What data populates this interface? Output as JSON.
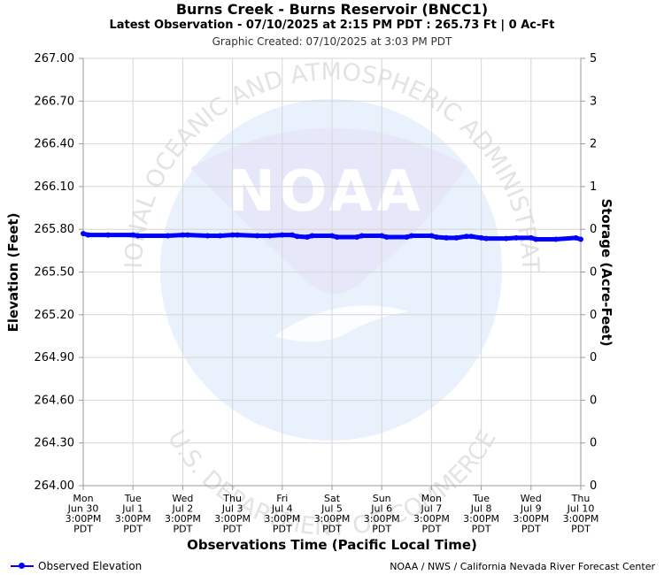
{
  "chart_data": {
    "type": "line",
    "title": "Burns Creek - Burns Reservoir (BNCC1)",
    "subtitle": "Latest Observation - 07/10/2025 at 2:15 PM PDT : 265.73 Ft | 0 Ac-Ft",
    "created": "Graphic Created: 07/10/2025 at 3:03 PM PDT",
    "xlabel": "Observations Time (Pacific Local Time)",
    "ylabel": "Elevation (Feet)",
    "y2label": "Storage (Acre-Feet)",
    "ylim": [
      264.0,
      267.0
    ],
    "y_ticks": [
      "264.00",
      "264.30",
      "264.60",
      "264.90",
      "265.20",
      "265.50",
      "265.80",
      "266.10",
      "266.40",
      "266.70",
      "267.00"
    ],
    "y2_ticks": [
      "0",
      "0",
      "0",
      "0",
      "0",
      "0",
      "0",
      "1",
      "2",
      "3",
      "5"
    ],
    "x_ticks": [
      [
        "Mon",
        "Jun 30",
        "3:00PM",
        "PDT"
      ],
      [
        "Tue",
        "Jul 1",
        "3:00PM",
        "PDT"
      ],
      [
        "Wed",
        "Jul 2",
        "3:00PM",
        "PDT"
      ],
      [
        "Thu",
        "Jul 3",
        "3:00PM",
        "PDT"
      ],
      [
        "Fri",
        "Jul 4",
        "3:00PM",
        "PDT"
      ],
      [
        "Sat",
        "Jul 5",
        "3:00PM",
        "PDT"
      ],
      [
        "Sun",
        "Jul 6",
        "3:00PM",
        "PDT"
      ],
      [
        "Mon",
        "Jul 7",
        "3:00PM",
        "PDT"
      ],
      [
        "Tue",
        "Jul 8",
        "3:00PM",
        "PDT"
      ],
      [
        "Wed",
        "Jul 9",
        "3:00PM",
        "PDT"
      ],
      [
        "Thu",
        "Jul 10",
        "3:00PM",
        "PDT"
      ]
    ],
    "x_range_days": [
      0,
      10
    ],
    "series": [
      {
        "name": "Observed Elevation",
        "color": "#0000ff",
        "x": [
          0.0,
          0.1,
          0.5,
          1.0,
          1.1,
          1.7,
          2.0,
          2.1,
          2.5,
          2.75,
          3.0,
          3.1,
          3.5,
          3.75,
          4.0,
          4.2,
          4.3,
          4.5,
          4.6,
          5.0,
          5.1,
          5.5,
          5.6,
          6.0,
          6.1,
          6.5,
          6.6,
          7.0,
          7.1,
          7.3,
          7.5,
          7.7,
          7.8,
          8.0,
          8.1,
          8.5,
          8.7,
          9.0,
          9.1,
          9.5,
          9.9,
          10.0
        ],
        "values": [
          265.77,
          265.76,
          265.76,
          265.76,
          265.755,
          265.755,
          265.76,
          265.76,
          265.755,
          265.755,
          265.76,
          265.76,
          265.755,
          265.755,
          265.76,
          265.76,
          265.75,
          265.745,
          265.755,
          265.755,
          265.745,
          265.745,
          265.755,
          265.755,
          265.745,
          265.745,
          265.755,
          265.755,
          265.745,
          265.74,
          265.74,
          265.75,
          265.75,
          265.74,
          265.735,
          265.735,
          265.74,
          265.74,
          265.73,
          265.73,
          265.74,
          265.73
        ]
      }
    ]
  },
  "legend": {
    "label": "Observed Elevation"
  },
  "credit": "NOAA / NWS / California Nevada River Forecast Center",
  "watermark": {
    "logo_text": "NOAA",
    "arc_top": "NATIONAL OCEANIC AND ATMOSPHERIC ADMINISTRATION",
    "arc_bottom": "U.S. DEPARTMENT OF COMMERCE"
  }
}
